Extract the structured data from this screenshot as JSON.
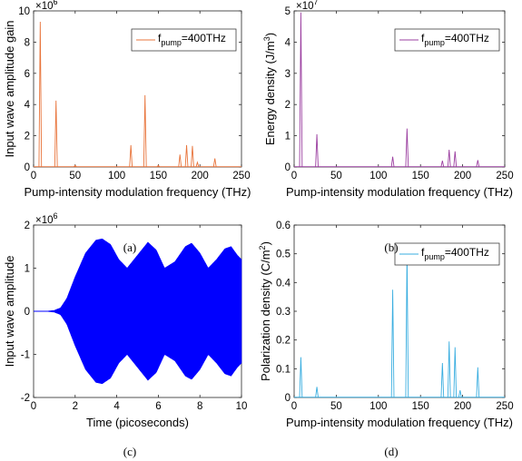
{
  "chart_data": [
    {
      "type": "line",
      "label": "(a)",
      "xlabel": "Pump-intensity modulation frequency (THz)",
      "ylabel": "Input wave amplitude gain",
      "exponent": "6",
      "xlim": [
        0,
        250
      ],
      "ylim": [
        0,
        10
      ],
      "xticks": [
        "0",
        "50",
        "100",
        "150",
        "200",
        "250"
      ],
      "yticks": [
        "0",
        "2",
        "4",
        "6",
        "8",
        "10"
      ],
      "grid": false,
      "legend_position": "top-right",
      "series": [
        {
          "name": "f_pump=400THz",
          "legend_main": "f",
          "legend_sub": "pump",
          "legend_rest": "=400THz",
          "color": "#e8743b",
          "peaks": [
            [
              8,
              9.3
            ],
            [
              27,
              4.25
            ],
            [
              50,
              0.1
            ],
            [
              117,
              1.4
            ],
            [
              134,
              4.6
            ],
            [
              150,
              0.1
            ],
            [
              176,
              0.8
            ],
            [
              184,
              1.4
            ],
            [
              191,
              1.35
            ],
            [
              197,
              0.3
            ],
            [
              218,
              0.55
            ]
          ]
        }
      ]
    },
    {
      "type": "line",
      "label": "(b)",
      "xlabel": "Pump-intensity modulation frequency (THz)",
      "ylabel_main": "Energy density (J/m",
      "ylabel_sup": "3",
      "ylabel_end": ")",
      "exponent": "7",
      "xlim": [
        0,
        250
      ],
      "ylim": [
        0,
        5
      ],
      "xticks": [
        "0",
        "50",
        "100",
        "150",
        "200",
        "250"
      ],
      "yticks": [
        "0",
        "1",
        "2",
        "3",
        "4",
        "5"
      ],
      "grid": false,
      "legend_position": "top-right",
      "series": [
        {
          "name": "f_pump=400THz",
          "legend_main": "f",
          "legend_sub": "pump",
          "legend_rest": "=400THz",
          "color": "#9b3fa0",
          "peaks": [
            [
              8,
              4.95
            ],
            [
              27,
              1.05
            ],
            [
              117,
              0.33
            ],
            [
              134,
              1.23
            ],
            [
              176,
              0.2
            ],
            [
              184,
              0.55
            ],
            [
              191,
              0.5
            ],
            [
              218,
              0.22
            ]
          ]
        }
      ]
    },
    {
      "type": "area",
      "label": "(c)",
      "xlabel": "Time (picoseconds)",
      "ylabel": "Input wave amplitude",
      "exponent": "6",
      "xlim": [
        0,
        10
      ],
      "ylim": [
        -2,
        2
      ],
      "xticks": [
        "0",
        "2",
        "4",
        "6",
        "8",
        "10"
      ],
      "yticks": [
        "-2",
        "-1",
        "0",
        "1",
        "2"
      ],
      "grid": false,
      "series": [
        {
          "color": "#0000ff",
          "envelope": [
            [
              0,
              0
            ],
            [
              0.6,
              0
            ],
            [
              1.0,
              0.02
            ],
            [
              1.3,
              0.08
            ],
            [
              1.6,
              0.3
            ],
            [
              2.0,
              0.8
            ],
            [
              2.5,
              1.35
            ],
            [
              3.0,
              1.65
            ],
            [
              3.3,
              1.68
            ],
            [
              3.7,
              1.55
            ],
            [
              4.1,
              1.2
            ],
            [
              4.5,
              1.0
            ],
            [
              5.0,
              1.3
            ],
            [
              5.5,
              1.6
            ],
            [
              5.9,
              1.42
            ],
            [
              6.3,
              1.0
            ],
            [
              6.8,
              1.15
            ],
            [
              7.3,
              1.5
            ],
            [
              7.6,
              1.58
            ],
            [
              8.0,
              1.35
            ],
            [
              8.4,
              1.0
            ],
            [
              8.8,
              1.2
            ],
            [
              9.2,
              1.45
            ],
            [
              9.5,
              1.5
            ],
            [
              9.8,
              1.3
            ],
            [
              10,
              1.2
            ]
          ]
        }
      ]
    },
    {
      "type": "line",
      "label": "(d)",
      "xlabel": "Pump-intensity modulation frequency (THz)",
      "ylabel_main": "Polarization density (C/m",
      "ylabel_sup": "2",
      "ylabel_end": ")",
      "xlim": [
        0,
        250
      ],
      "ylim": [
        0,
        0.6
      ],
      "xticks": [
        "0",
        "50",
        "100",
        "150",
        "200",
        "250"
      ],
      "yticks": [
        "0",
        "0.1",
        "0.2",
        "0.3",
        "0.4",
        "0.5",
        "0.6"
      ],
      "grid": false,
      "legend_position": "top-right",
      "series": [
        {
          "name": "f_pump=400THz",
          "legend_main": "f",
          "legend_sub": "pump",
          "legend_rest": "=400THz",
          "color": "#3aaee0",
          "peaks": [
            [
              8,
              0.14
            ],
            [
              27,
              0.037
            ],
            [
              117,
              0.375
            ],
            [
              134,
              0.505
            ],
            [
              176,
              0.12
            ],
            [
              184,
              0.195
            ],
            [
              191,
              0.175
            ],
            [
              197,
              0.025
            ],
            [
              218,
              0.105
            ]
          ]
        }
      ]
    }
  ]
}
